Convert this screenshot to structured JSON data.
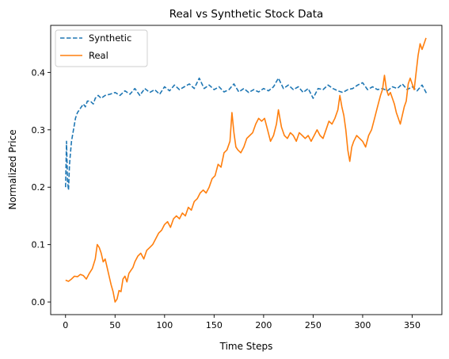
{
  "chart_data": {
    "type": "line",
    "title": "Real vs Synthetic Stock Data",
    "xlabel": "Time Steps",
    "ylabel": "Normalized Price",
    "xlim": [
      -15,
      380
    ],
    "ylim": [
      -0.022,
      0.482
    ],
    "xticks": [
      0,
      50,
      100,
      150,
      200,
      250,
      300,
      350
    ],
    "yticks": [
      0.0,
      0.1,
      0.2,
      0.3,
      0.4
    ],
    "ytick_labels": [
      "0.0",
      "0.1",
      "0.2",
      "0.3",
      "0.4"
    ],
    "grid": false,
    "legend": {
      "position": "top-left"
    },
    "series": [
      {
        "name": "Synthetic",
        "color": "#1f77b4",
        "dash": "dashed",
        "points": [
          [
            0,
            0.2
          ],
          [
            1,
            0.28
          ],
          [
            2,
            0.21
          ],
          [
            3,
            0.195
          ],
          [
            4,
            0.24
          ],
          [
            5,
            0.26
          ],
          [
            6,
            0.28
          ],
          [
            8,
            0.3
          ],
          [
            10,
            0.32
          ],
          [
            12,
            0.33
          ],
          [
            14,
            0.335
          ],
          [
            16,
            0.34
          ],
          [
            18,
            0.345
          ],
          [
            20,
            0.34
          ],
          [
            22,
            0.35
          ],
          [
            25,
            0.35
          ],
          [
            28,
            0.345
          ],
          [
            30,
            0.355
          ],
          [
            33,
            0.36
          ],
          [
            36,
            0.355
          ],
          [
            40,
            0.36
          ],
          [
            45,
            0.362
          ],
          [
            50,
            0.365
          ],
          [
            55,
            0.36
          ],
          [
            60,
            0.368
          ],
          [
            65,
            0.362
          ],
          [
            70,
            0.372
          ],
          [
            75,
            0.36
          ],
          [
            80,
            0.372
          ],
          [
            85,
            0.365
          ],
          [
            90,
            0.37
          ],
          [
            95,
            0.362
          ],
          [
            100,
            0.375
          ],
          [
            105,
            0.368
          ],
          [
            110,
            0.378
          ],
          [
            115,
            0.37
          ],
          [
            120,
            0.375
          ],
          [
            125,
            0.38
          ],
          [
            130,
            0.372
          ],
          [
            135,
            0.39
          ],
          [
            140,
            0.372
          ],
          [
            145,
            0.378
          ],
          [
            150,
            0.37
          ],
          [
            155,
            0.375
          ],
          [
            160,
            0.366
          ],
          [
            165,
            0.37
          ],
          [
            170,
            0.38
          ],
          [
            175,
            0.366
          ],
          [
            180,
            0.372
          ],
          [
            185,
            0.365
          ],
          [
            190,
            0.37
          ],
          [
            195,
            0.366
          ],
          [
            200,
            0.372
          ],
          [
            205,
            0.368
          ],
          [
            210,
            0.375
          ],
          [
            215,
            0.39
          ],
          [
            220,
            0.372
          ],
          [
            225,
            0.378
          ],
          [
            230,
            0.37
          ],
          [
            235,
            0.375
          ],
          [
            240,
            0.365
          ],
          [
            245,
            0.372
          ],
          [
            250,
            0.355
          ],
          [
            255,
            0.372
          ],
          [
            260,
            0.37
          ],
          [
            265,
            0.378
          ],
          [
            270,
            0.372
          ],
          [
            275,
            0.368
          ],
          [
            280,
            0.365
          ],
          [
            285,
            0.37
          ],
          [
            290,
            0.372
          ],
          [
            295,
            0.378
          ],
          [
            300,
            0.382
          ],
          [
            305,
            0.37
          ],
          [
            310,
            0.375
          ],
          [
            315,
            0.37
          ],
          [
            320,
            0.372
          ],
          [
            325,
            0.368
          ],
          [
            330,
            0.375
          ],
          [
            335,
            0.372
          ],
          [
            340,
            0.38
          ],
          [
            345,
            0.37
          ],
          [
            350,
            0.375
          ],
          [
            355,
            0.368
          ],
          [
            360,
            0.378
          ],
          [
            365,
            0.362
          ]
        ]
      },
      {
        "name": "Real",
        "color": "#ff7f0e",
        "dash": "solid",
        "points": [
          [
            0,
            0.038
          ],
          [
            3,
            0.036
          ],
          [
            6,
            0.04
          ],
          [
            9,
            0.045
          ],
          [
            12,
            0.044
          ],
          [
            15,
            0.048
          ],
          [
            18,
            0.046
          ],
          [
            21,
            0.04
          ],
          [
            24,
            0.05
          ],
          [
            27,
            0.058
          ],
          [
            30,
            0.075
          ],
          [
            32,
            0.1
          ],
          [
            34,
            0.095
          ],
          [
            36,
            0.085
          ],
          [
            38,
            0.07
          ],
          [
            40,
            0.075
          ],
          [
            42,
            0.06
          ],
          [
            44,
            0.045
          ],
          [
            46,
            0.03
          ],
          [
            48,
            0.018
          ],
          [
            50,
            0.0
          ],
          [
            52,
            0.005
          ],
          [
            54,
            0.02
          ],
          [
            56,
            0.018
          ],
          [
            58,
            0.04
          ],
          [
            60,
            0.045
          ],
          [
            62,
            0.035
          ],
          [
            64,
            0.05
          ],
          [
            66,
            0.055
          ],
          [
            68,
            0.06
          ],
          [
            70,
            0.07
          ],
          [
            73,
            0.08
          ],
          [
            76,
            0.085
          ],
          [
            79,
            0.075
          ],
          [
            82,
            0.09
          ],
          [
            85,
            0.095
          ],
          [
            88,
            0.1
          ],
          [
            91,
            0.11
          ],
          [
            94,
            0.12
          ],
          [
            97,
            0.125
          ],
          [
            100,
            0.135
          ],
          [
            103,
            0.14
          ],
          [
            106,
            0.13
          ],
          [
            109,
            0.145
          ],
          [
            112,
            0.15
          ],
          [
            115,
            0.145
          ],
          [
            118,
            0.155
          ],
          [
            121,
            0.15
          ],
          [
            124,
            0.165
          ],
          [
            127,
            0.16
          ],
          [
            130,
            0.175
          ],
          [
            133,
            0.18
          ],
          [
            136,
            0.19
          ],
          [
            139,
            0.195
          ],
          [
            142,
            0.19
          ],
          [
            145,
            0.2
          ],
          [
            148,
            0.215
          ],
          [
            151,
            0.22
          ],
          [
            154,
            0.24
          ],
          [
            157,
            0.235
          ],
          [
            160,
            0.26
          ],
          [
            163,
            0.265
          ],
          [
            166,
            0.28
          ],
          [
            168,
            0.33
          ],
          [
            170,
            0.295
          ],
          [
            172,
            0.27
          ],
          [
            174,
            0.265
          ],
          [
            177,
            0.26
          ],
          [
            180,
            0.27
          ],
          [
            183,
            0.285
          ],
          [
            186,
            0.29
          ],
          [
            189,
            0.295
          ],
          [
            192,
            0.31
          ],
          [
            195,
            0.32
          ],
          [
            198,
            0.315
          ],
          [
            201,
            0.32
          ],
          [
            204,
            0.3
          ],
          [
            207,
            0.28
          ],
          [
            210,
            0.29
          ],
          [
            213,
            0.31
          ],
          [
            215,
            0.335
          ],
          [
            218,
            0.305
          ],
          [
            221,
            0.29
          ],
          [
            224,
            0.285
          ],
          [
            227,
            0.295
          ],
          [
            230,
            0.29
          ],
          [
            233,
            0.28
          ],
          [
            236,
            0.295
          ],
          [
            239,
            0.29
          ],
          [
            242,
            0.285
          ],
          [
            245,
            0.29
          ],
          [
            248,
            0.28
          ],
          [
            251,
            0.29
          ],
          [
            254,
            0.3
          ],
          [
            257,
            0.29
          ],
          [
            260,
            0.285
          ],
          [
            263,
            0.3
          ],
          [
            266,
            0.315
          ],
          [
            269,
            0.31
          ],
          [
            272,
            0.32
          ],
          [
            275,
            0.335
          ],
          [
            277,
            0.36
          ],
          [
            279,
            0.34
          ],
          [
            281,
            0.325
          ],
          [
            283,
            0.3
          ],
          [
            285,
            0.265
          ],
          [
            287,
            0.245
          ],
          [
            289,
            0.27
          ],
          [
            291,
            0.28
          ],
          [
            294,
            0.29
          ],
          [
            297,
            0.285
          ],
          [
            300,
            0.28
          ],
          [
            303,
            0.27
          ],
          [
            306,
            0.29
          ],
          [
            309,
            0.3
          ],
          [
            312,
            0.32
          ],
          [
            315,
            0.34
          ],
          [
            318,
            0.36
          ],
          [
            320,
            0.37
          ],
          [
            322,
            0.395
          ],
          [
            324,
            0.37
          ],
          [
            326,
            0.36
          ],
          [
            328,
            0.365
          ],
          [
            330,
            0.355
          ],
          [
            332,
            0.345
          ],
          [
            334,
            0.33
          ],
          [
            336,
            0.32
          ],
          [
            338,
            0.31
          ],
          [
            340,
            0.325
          ],
          [
            342,
            0.34
          ],
          [
            344,
            0.35
          ],
          [
            346,
            0.38
          ],
          [
            348,
            0.39
          ],
          [
            350,
            0.38
          ],
          [
            352,
            0.37
          ],
          [
            354,
            0.4
          ],
          [
            356,
            0.43
          ],
          [
            358,
            0.45
          ],
          [
            360,
            0.44
          ],
          [
            362,
            0.45
          ],
          [
            364,
            0.46
          ]
        ]
      }
    ]
  }
}
